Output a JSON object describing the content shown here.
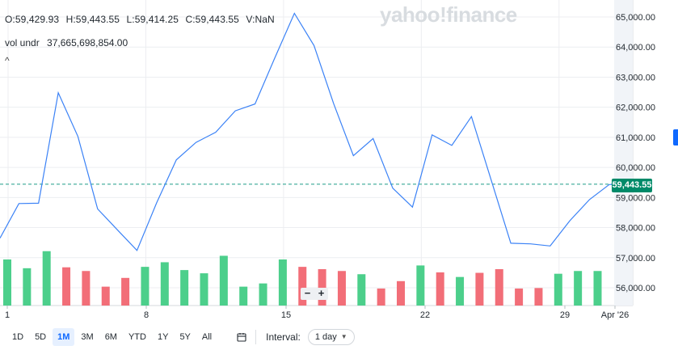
{
  "ohlc": {
    "open": "O:59,429.93",
    "high": "H:59,443.55",
    "low": "L:59,414.25",
    "close": "C:59,443.55",
    "volume": "V:NaN"
  },
  "vol_label": "vol undr",
  "vol_value": "37,665,698,854.00",
  "collapse_glyph": "^",
  "watermark": "yahoo!finance",
  "current_price": "59,443.55",
  "colors": {
    "line": "#3b82f6",
    "up": "#4ccf8b",
    "down": "#f26e78",
    "price_tag": "#008a69",
    "active": "#0f69ff"
  },
  "zoom": {
    "minus": "−",
    "plus": "+"
  },
  "toolbar": {
    "ranges": [
      "1D",
      "5D",
      "1M",
      "3M",
      "6M",
      "YTD",
      "1Y",
      "5Y",
      "All"
    ],
    "active_range": "1M",
    "calendar_icon": "calendar-icon",
    "interval_label": "Interval:",
    "interval_value": "1 day"
  },
  "chart_data": {
    "type": "line",
    "y_ticks": [
      "65,000.00",
      "64,000.00",
      "63,000.00",
      "62,000.00",
      "61,000.00",
      "60,000.00",
      "59,000.00",
      "58,000.00",
      "57,000.00",
      "56,000.00"
    ],
    "x_ticks": [
      "1",
      "8",
      "15",
      "22",
      "29",
      "Apr '26"
    ],
    "ylim": [
      55500,
      65500
    ],
    "price_series": [
      57650,
      58800,
      58810,
      62480,
      61030,
      58620,
      57930,
      57240,
      58820,
      60250,
      60830,
      61170,
      61880,
      62110,
      63630,
      65120,
      64050,
      62110,
      60390,
      60960,
      59310,
      58680,
      61080,
      60730,
      61690,
      59580,
      57480,
      57460,
      57390,
      58230,
      58930,
      59430,
      59443.55
    ],
    "volume_series": [
      {
        "value": 1.0,
        "dir": "up"
      },
      {
        "value": 0.81,
        "dir": "up"
      },
      {
        "value": 1.18,
        "dir": "up"
      },
      {
        "value": 0.83,
        "dir": "down"
      },
      {
        "value": 0.75,
        "dir": "down"
      },
      {
        "value": 0.41,
        "dir": "down"
      },
      {
        "value": 0.6,
        "dir": "down"
      },
      {
        "value": 0.84,
        "dir": "up"
      },
      {
        "value": 0.94,
        "dir": "up"
      },
      {
        "value": 0.77,
        "dir": "up"
      },
      {
        "value": 0.7,
        "dir": "up"
      },
      {
        "value": 1.08,
        "dir": "up"
      },
      {
        "value": 0.41,
        "dir": "up"
      },
      {
        "value": 0.48,
        "dir": "up"
      },
      {
        "value": 1.0,
        "dir": "up"
      },
      {
        "value": 0.84,
        "dir": "down"
      },
      {
        "value": 0.79,
        "dir": "down"
      },
      {
        "value": 0.75,
        "dir": "down"
      },
      {
        "value": 0.68,
        "dir": "up"
      },
      {
        "value": 0.37,
        "dir": "down"
      },
      {
        "value": 0.53,
        "dir": "down"
      },
      {
        "value": 0.87,
        "dir": "up"
      },
      {
        "value": 0.72,
        "dir": "down"
      },
      {
        "value": 0.62,
        "dir": "up"
      },
      {
        "value": 0.71,
        "dir": "down"
      },
      {
        "value": 0.79,
        "dir": "down"
      },
      {
        "value": 0.37,
        "dir": "down"
      },
      {
        "value": 0.38,
        "dir": "down"
      },
      {
        "value": 0.69,
        "dir": "up"
      },
      {
        "value": 0.75,
        "dir": "up"
      },
      {
        "value": 0.75,
        "dir": "up"
      }
    ]
  }
}
